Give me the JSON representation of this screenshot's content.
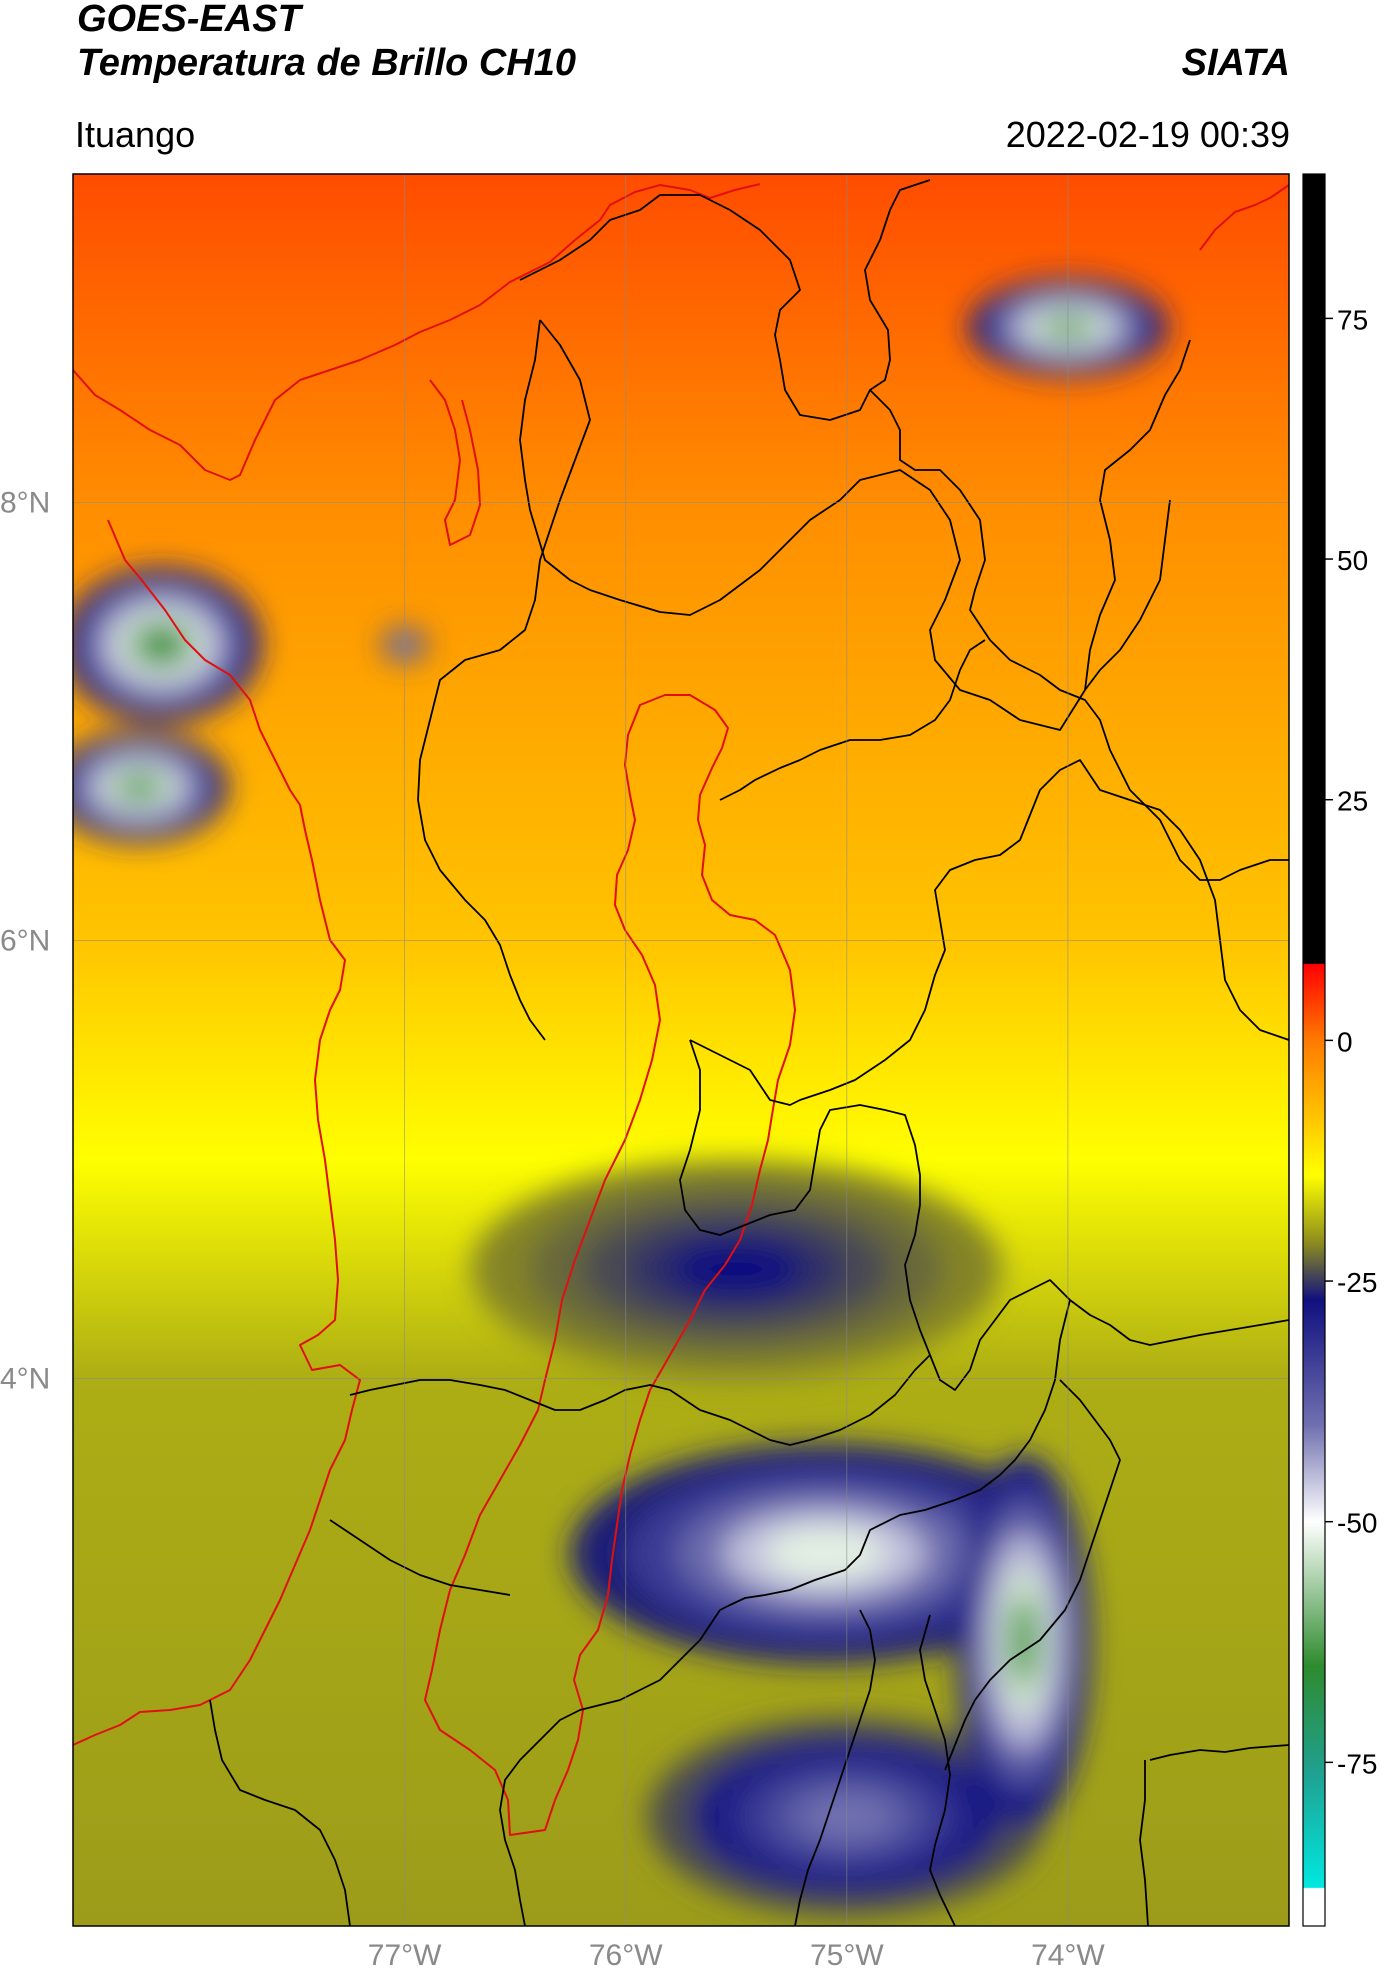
{
  "header": {
    "title_line1": "GOES-EAST",
    "title_line2": "Temperatura de Brillo CH10",
    "organization": "SIATA",
    "location": "Ituango",
    "datetime": "2022-02-19 00:39"
  },
  "chart_data": {
    "type": "heatmap",
    "title": "Temperatura de Brillo CH10",
    "map": {
      "lon_range": [
        -78.5,
        -73.0
      ],
      "lat_range": [
        1.5,
        9.5
      ],
      "lon_ticks": [
        -77,
        -76,
        -75,
        -74
      ],
      "lon_tick_labels": [
        "77°W",
        "76°W",
        "75°W",
        "74°W"
      ],
      "lat_ticks": [
        4,
        6,
        8
      ],
      "lat_tick_labels": [
        "4°N",
        "6°N",
        "8°N"
      ],
      "grid": true,
      "boundaries": {
        "coastline_color": "#e01010",
        "study_region_color": "#e01010",
        "admin_color": "#000000"
      }
    },
    "colorbar": {
      "position": "right",
      "range": [
        -92,
        90
      ],
      "ticks": [
        75,
        50,
        25,
        0,
        -25,
        -50,
        -75
      ],
      "tick_labels": [
        "75",
        "50",
        "25",
        "0",
        "-25",
        "-50",
        "-75"
      ],
      "stops": [
        {
          "value": 90,
          "color": "#000000"
        },
        {
          "value": 8,
          "color": "#000000"
        },
        {
          "value": 7.9,
          "color": "#ff0000"
        },
        {
          "value": 0,
          "color": "#ff7a00"
        },
        {
          "value": -8,
          "color": "#ffc400"
        },
        {
          "value": -14,
          "color": "#ffff00"
        },
        {
          "value": -21,
          "color": "#8c8c1e"
        },
        {
          "value": -27,
          "color": "#101080"
        },
        {
          "value": -40,
          "color": "#7070b0"
        },
        {
          "value": -50,
          "color": "#ffffff"
        },
        {
          "value": -65,
          "color": "#2e8b2e"
        },
        {
          "value": -76,
          "color": "#20a090"
        },
        {
          "value": -88,
          "color": "#00e8e0"
        },
        {
          "value": -88.1,
          "color": "#ffffff"
        },
        {
          "value": -92,
          "color": "#ffffff"
        }
      ]
    },
    "field": {
      "background_gradient": [
        {
          "lat": 9.5,
          "value": 3
        },
        {
          "lat": 8.0,
          "value": -2
        },
        {
          "lat": 6.0,
          "value": -8
        },
        {
          "lat": 5.0,
          "value": -14
        },
        {
          "lat": 4.0,
          "value": -19
        },
        {
          "lat": 1.5,
          "value": -20
        }
      ],
      "cold_features": [
        {
          "name": "NE cell",
          "lon": -74.0,
          "lat": 8.8,
          "rx": 0.45,
          "ry": 0.22,
          "peak": -62
        },
        {
          "name": "W cell north",
          "lon": -78.1,
          "lat": 7.35,
          "rx": 0.45,
          "ry": 0.35,
          "peak": -65
        },
        {
          "name": "W cell south",
          "lon": -78.2,
          "lat": 6.7,
          "rx": 0.4,
          "ry": 0.25,
          "peak": -63
        },
        {
          "name": "small cell",
          "lon": -77.0,
          "lat": 7.35,
          "rx": 0.1,
          "ry": 0.08,
          "peak": -48
        },
        {
          "name": "south complex",
          "lon": -75.1,
          "lat": 3.2,
          "rx": 1.15,
          "ry": 0.5,
          "peak": -52
        },
        {
          "name": "SE cell",
          "lon": -74.2,
          "lat": 2.8,
          "rx": 0.3,
          "ry": 0.85,
          "peak": -62
        },
        {
          "name": "S outflow",
          "lon": -75.0,
          "lat": 2.0,
          "rx": 0.9,
          "ry": 0.45,
          "peak": -40
        },
        {
          "name": "central band",
          "lon": -75.5,
          "lat": 4.5,
          "rx": 1.2,
          "ry": 0.5,
          "peak": -27
        }
      ]
    }
  }
}
